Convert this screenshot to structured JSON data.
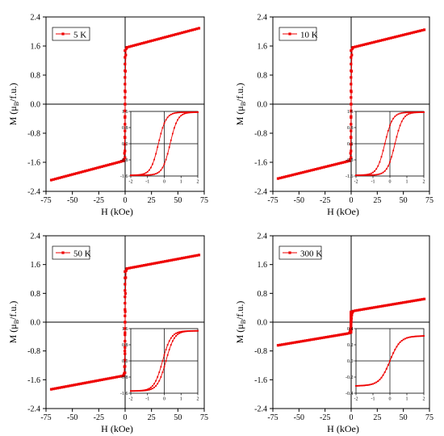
{
  "chart_data": [
    {
      "type": "scatter",
      "legend": "5 K",
      "xlabel": "H  (kOe)",
      "ylabel_main": "M  (μ",
      "ylabel_sub": "B",
      "ylabel_tail": "/f.u.)",
      "xlim": [
        -75,
        75
      ],
      "ylim": [
        -2.4,
        2.4
      ],
      "xticks": [
        -75,
        -50,
        -25,
        0,
        25,
        50,
        75
      ],
      "yticks": [
        -2.4,
        -1.6,
        -0.8,
        0.0,
        0.8,
        1.6,
        2.4
      ],
      "ytick_labels": [
        "-2.4",
        "-1.6",
        "-0.8",
        "0.0",
        "0.8",
        "1.6",
        "2.4"
      ],
      "ms": 1.55,
      "slope": 0.0077,
      "Hk": 0.45,
      "inset": {
        "xlim": [
          -2,
          2
        ],
        "ylim": [
          -1.6,
          1.6
        ],
        "xticks": [
          -2,
          -1,
          0,
          1,
          2
        ],
        "yticks": [
          -1.6,
          -0.8,
          0.0,
          0.8,
          1.6
        ],
        "ytick_labels": [
          "-1.6",
          "-0.8",
          "0.0",
          "0.8",
          "1.6"
        ],
        "coercivity": 0.35,
        "width": 0.45,
        "sat": 1.55,
        "slope": 0.0077
      }
    },
    {
      "type": "scatter",
      "legend": "10 K",
      "xlabel": "H  (kOe)",
      "ylabel_main": "M  (μ",
      "ylabel_sub": "B",
      "ylabel_tail": "/f.u.)",
      "xlim": [
        -75,
        75
      ],
      "ylim": [
        -2.4,
        2.4
      ],
      "xticks": [
        -75,
        -50,
        -25,
        0,
        25,
        50,
        75
      ],
      "yticks": [
        -2.4,
        -1.6,
        -0.8,
        0.0,
        0.8,
        1.6,
        2.4
      ],
      "ytick_labels": [
        "-2.4",
        "-1.6",
        "-0.8",
        "0.0",
        "0.8",
        "1.6",
        "2.4"
      ],
      "ms": 1.55,
      "slope": 0.0071,
      "Hk": 0.45,
      "inset": {
        "xlim": [
          -2,
          2
        ],
        "ylim": [
          -1.6,
          1.6
        ],
        "xticks": [
          -2,
          -1,
          0,
          1,
          2
        ],
        "yticks": [
          -1.6,
          -0.8,
          0.0,
          0.8,
          1.6
        ],
        "ytick_labels": [
          "-1.6",
          "-0.8",
          "0.0",
          "0.8",
          "1.6"
        ],
        "coercivity": 0.3,
        "width": 0.45,
        "sat": 1.55,
        "slope": 0.0071
      }
    },
    {
      "type": "scatter",
      "legend": "50 K",
      "xlabel": "H  (kOe)",
      "ylabel_main": "M  (μ",
      "ylabel_sub": "B",
      "ylabel_tail": "/f.u.)",
      "xlim": [
        -75,
        75
      ],
      "ylim": [
        -2.4,
        2.4
      ],
      "xticks": [
        -75,
        -50,
        -25,
        0,
        25,
        50,
        75
      ],
      "yticks": [
        -2.4,
        -1.6,
        -0.8,
        0.0,
        0.8,
        1.6,
        2.4
      ],
      "ytick_labels": [
        "-2.4",
        "-1.6",
        "-0.8",
        "0.0",
        "0.8",
        "1.6",
        "2.4"
      ],
      "ms": 1.48,
      "slope": 0.0055,
      "Hk": 0.5,
      "inset": {
        "xlim": [
          -2,
          2
        ],
        "ylim": [
          -1.6,
          1.6
        ],
        "xticks": [
          -2,
          -1,
          0,
          1,
          2
        ],
        "yticks": [
          -1.6,
          -0.8,
          0.0,
          0.8,
          1.6
        ],
        "ytick_labels": [
          "-1.6",
          "-0.8",
          "0.0",
          "0.8",
          "1.6"
        ],
        "coercivity": 0.1,
        "width": 0.5,
        "sat": 1.48,
        "slope": 0.0055
      }
    },
    {
      "type": "scatter",
      "legend": "300 K",
      "xlabel": "H  (kOe)",
      "ylabel_main": "M  (μ",
      "ylabel_sub": "B",
      "ylabel_tail": "/f.u.)",
      "xlim": [
        -75,
        75
      ],
      "ylim": [
        -2.4,
        2.4
      ],
      "xticks": [
        -75,
        -50,
        -25,
        0,
        25,
        50,
        75
      ],
      "yticks": [
        -2.4,
        -1.6,
        -0.8,
        0.0,
        0.8,
        1.6,
        2.4
      ],
      "ytick_labels": [
        "-2.4",
        "-1.6",
        "-0.8",
        "0.0",
        "0.8",
        "1.6",
        "2.4"
      ],
      "ms": 0.3,
      "slope": 0.0049,
      "Hk": 0.8,
      "inset": {
        "xlim": [
          -2,
          2
        ],
        "ylim": [
          -0.4,
          0.4
        ],
        "xticks": [
          -2,
          -1,
          0,
          1,
          2
        ],
        "yticks": [
          -0.4,
          -0.2,
          0.0,
          0.2,
          0.4
        ],
        "ytick_labels": [
          "-0.4",
          "-0.2",
          "0.0",
          "0.2",
          "0.4"
        ],
        "coercivity": 0.0,
        "width": 0.6,
        "sat": 0.3,
        "slope": 0.0049
      }
    }
  ],
  "colors": {
    "series": "#ee0000",
    "axis": "#000000"
  }
}
